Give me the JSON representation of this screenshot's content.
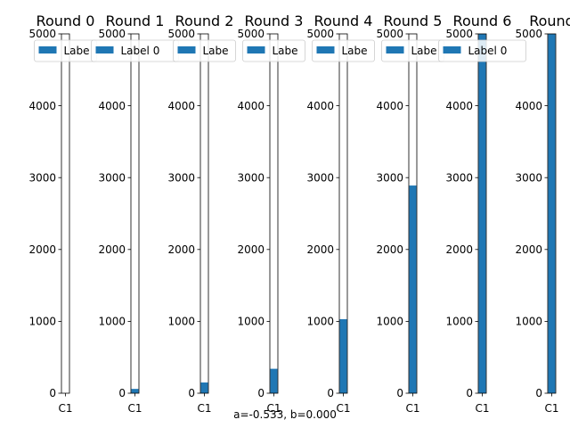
{
  "chart_data": [
    {
      "type": "bar",
      "title": "Round 0",
      "categories": [
        "C1"
      ],
      "values": [
        0
      ],
      "legend": [
        "Label 0"
      ],
      "legend_text_shown": "Labe",
      "ylim": [
        0,
        5000
      ],
      "yticks": [
        0,
        1000,
        2000,
        3000,
        4000,
        5000
      ]
    },
    {
      "type": "bar",
      "title": "Round 1",
      "categories": [
        "C1"
      ],
      "values": [
        60
      ],
      "legend": [
        "Label 0"
      ],
      "legend_text_shown": "Label 0",
      "ylim": [
        0,
        5000
      ],
      "yticks": [
        0,
        1000,
        2000,
        3000,
        4000,
        5000
      ]
    },
    {
      "type": "bar",
      "title": "Round 2",
      "categories": [
        "C1"
      ],
      "values": [
        150
      ],
      "legend": [
        "Label 0"
      ],
      "legend_text_shown": "Labe",
      "ylim": [
        0,
        5000
      ],
      "yticks": [
        0,
        1000,
        2000,
        3000,
        4000,
        5000
      ]
    },
    {
      "type": "bar",
      "title": "Round 3",
      "categories": [
        "C1"
      ],
      "values": [
        340
      ],
      "legend": [
        "Label 0"
      ],
      "legend_text_shown": "Labe",
      "ylim": [
        0,
        5000
      ],
      "yticks": [
        0,
        1000,
        2000,
        3000,
        4000,
        5000
      ]
    },
    {
      "type": "bar",
      "title": "Round 4",
      "categories": [
        "C1"
      ],
      "values": [
        1030
      ],
      "legend": [
        "Label 0"
      ],
      "legend_text_shown": "Labe",
      "ylim": [
        0,
        5000
      ],
      "yticks": [
        0,
        1000,
        2000,
        3000,
        4000,
        5000
      ]
    },
    {
      "type": "bar",
      "title": "Round 5",
      "categories": [
        "C1"
      ],
      "values": [
        2890
      ],
      "legend": [
        "Label 0"
      ],
      "legend_text_shown": "Labe",
      "ylim": [
        0,
        5000
      ],
      "yticks": [
        0,
        1000,
        2000,
        3000,
        4000,
        5000
      ]
    },
    {
      "type": "bar",
      "title": "Round 6",
      "categories": [
        "C1"
      ],
      "values": [
        5000
      ],
      "legend": [
        "Label 0"
      ],
      "legend_text_shown": "Label 0",
      "ylim": [
        0,
        5000
      ],
      "yticks": [
        0,
        1000,
        2000,
        3000,
        4000,
        5000
      ]
    },
    {
      "type": "bar",
      "title": "Round",
      "categories": [
        "C1"
      ],
      "values": [
        5000
      ],
      "legend": [
        "Label 0"
      ],
      "legend_text_shown": "",
      "ylim": [
        0,
        5000
      ],
      "yticks": [
        0,
        1000,
        2000,
        3000,
        4000,
        5000
      ]
    }
  ],
  "footer": "a=-0.533, b=0.000",
  "colors": {
    "bar": "#1f77b4",
    "axis": "#000000",
    "legend_border": "#cccccc",
    "background": "#ffffff"
  }
}
